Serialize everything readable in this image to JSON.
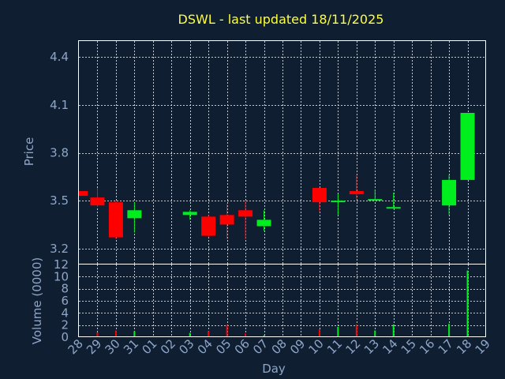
{
  "chart_data": {
    "type": "candlestick",
    "title": "DSWL - last updated 18/11/2025",
    "xlabel": "Day",
    "price_panel": {
      "ylabel": "Price",
      "ylim": [
        3.1,
        4.5
      ],
      "yticks": [
        3.2,
        3.5,
        3.8,
        4.1,
        4.4
      ],
      "ytick_labels": [
        "3.2",
        "3.5",
        "3.8",
        "4.1",
        "4.4"
      ],
      "grid": true
    },
    "volume_panel": {
      "ylabel": "Volume (0000)",
      "ylim": [
        0,
        12
      ],
      "yticks": [
        0,
        2,
        4,
        6,
        8,
        10,
        12
      ],
      "ytick_labels": [
        "0",
        "2",
        "4",
        "6",
        "8",
        "10",
        "12"
      ],
      "grid": true
    },
    "x_ticks": [
      {
        "pos": 0,
        "label": "28"
      },
      {
        "pos": 1,
        "label": "29"
      },
      {
        "pos": 2,
        "label": "30"
      },
      {
        "pos": 3,
        "label": "31"
      },
      {
        "pos": 4,
        "label": "01"
      },
      {
        "pos": 5,
        "label": "02"
      },
      {
        "pos": 6,
        "label": "03"
      },
      {
        "pos": 7,
        "label": "04"
      },
      {
        "pos": 8,
        "label": "05"
      },
      {
        "pos": 9,
        "label": "06"
      },
      {
        "pos": 10,
        "label": "07"
      },
      {
        "pos": 11,
        "label": "08"
      },
      {
        "pos": 12,
        "label": "09"
      },
      {
        "pos": 13,
        "label": "10"
      },
      {
        "pos": 14,
        "label": "11"
      },
      {
        "pos": 15,
        "label": "12"
      },
      {
        "pos": 16,
        "label": "13"
      },
      {
        "pos": 17,
        "label": "14"
      },
      {
        "pos": 18,
        "label": "15"
      },
      {
        "pos": 19,
        "label": "16"
      },
      {
        "pos": 20,
        "label": "17"
      },
      {
        "pos": 21,
        "label": "18"
      },
      {
        "pos": 22,
        "label": "19"
      }
    ],
    "x_range": [
      0,
      22
    ],
    "vertical_grid_positions": [
      1,
      2,
      3,
      4,
      5,
      6,
      7,
      8,
      9,
      10,
      11,
      12,
      13,
      14,
      15,
      16,
      17,
      18,
      19,
      20,
      21
    ],
    "candles": [
      {
        "day": "28",
        "x": 0.1,
        "open": 3.56,
        "close": 3.53,
        "high": 3.56,
        "low": 3.53,
        "volume": 0.1
      },
      {
        "day": "29",
        "x": 1.0,
        "open": 3.52,
        "close": 3.47,
        "high": 3.58,
        "low": 3.46,
        "volume": 0.8
      },
      {
        "day": "30",
        "x": 2.0,
        "open": 3.49,
        "close": 3.27,
        "high": 3.5,
        "low": 3.26,
        "volume": 1.1
      },
      {
        "day": "31",
        "x": 3.0,
        "open": 3.39,
        "close": 3.44,
        "high": 3.49,
        "low": 3.3,
        "volume": 1.0
      },
      {
        "day": "03",
        "x": 6.0,
        "open": 3.41,
        "close": 3.43,
        "high": 3.44,
        "low": 3.38,
        "volume": 0.7
      },
      {
        "day": "04",
        "x": 7.0,
        "open": 3.4,
        "close": 3.28,
        "high": 3.41,
        "low": 3.27,
        "volume": 1.0
      },
      {
        "day": "05",
        "x": 8.0,
        "open": 3.41,
        "close": 3.35,
        "high": 3.48,
        "low": 3.26,
        "volume": 2.0
      },
      {
        "day": "06",
        "x": 9.0,
        "open": 3.44,
        "close": 3.4,
        "high": 3.5,
        "low": 3.26,
        "volume": 0.6
      },
      {
        "day": "07",
        "x": 10.0,
        "open": 3.34,
        "close": 3.38,
        "high": 3.44,
        "low": 3.31,
        "volume": 0.3
      },
      {
        "day": "10",
        "x": 13.0,
        "open": 3.58,
        "close": 3.49,
        "high": 3.58,
        "low": 3.43,
        "volume": 1.3
      },
      {
        "day": "11",
        "x": 14.0,
        "open": 3.49,
        "close": 3.5,
        "high": 3.54,
        "low": 3.41,
        "volume": 1.7
      },
      {
        "day": "12",
        "x": 15.0,
        "open": 3.56,
        "close": 3.54,
        "high": 3.66,
        "low": 3.51,
        "volume": 2.1
      },
      {
        "day": "13",
        "x": 16.0,
        "open": 3.5,
        "close": 3.51,
        "high": 3.57,
        "low": 3.5,
        "volume": 1.1
      },
      {
        "day": "14",
        "x": 17.0,
        "open": 3.45,
        "close": 3.46,
        "high": 3.55,
        "low": 3.45,
        "volume": 2.1
      },
      {
        "day": "17",
        "x": 20.0,
        "open": 3.47,
        "close": 3.63,
        "high": 3.66,
        "low": 3.41,
        "volume": 2.2
      },
      {
        "day": "18",
        "x": 21.0,
        "open": 3.63,
        "close": 4.05,
        "high": 4.05,
        "low": 3.63,
        "volume": 11.0
      }
    ],
    "colors": {
      "background": "#0f1e31",
      "up": "#00ee1e",
      "down": "#ff0000",
      "title": "#ffff3a",
      "text": "#8ea6c8",
      "frame": "#ffffff"
    }
  }
}
